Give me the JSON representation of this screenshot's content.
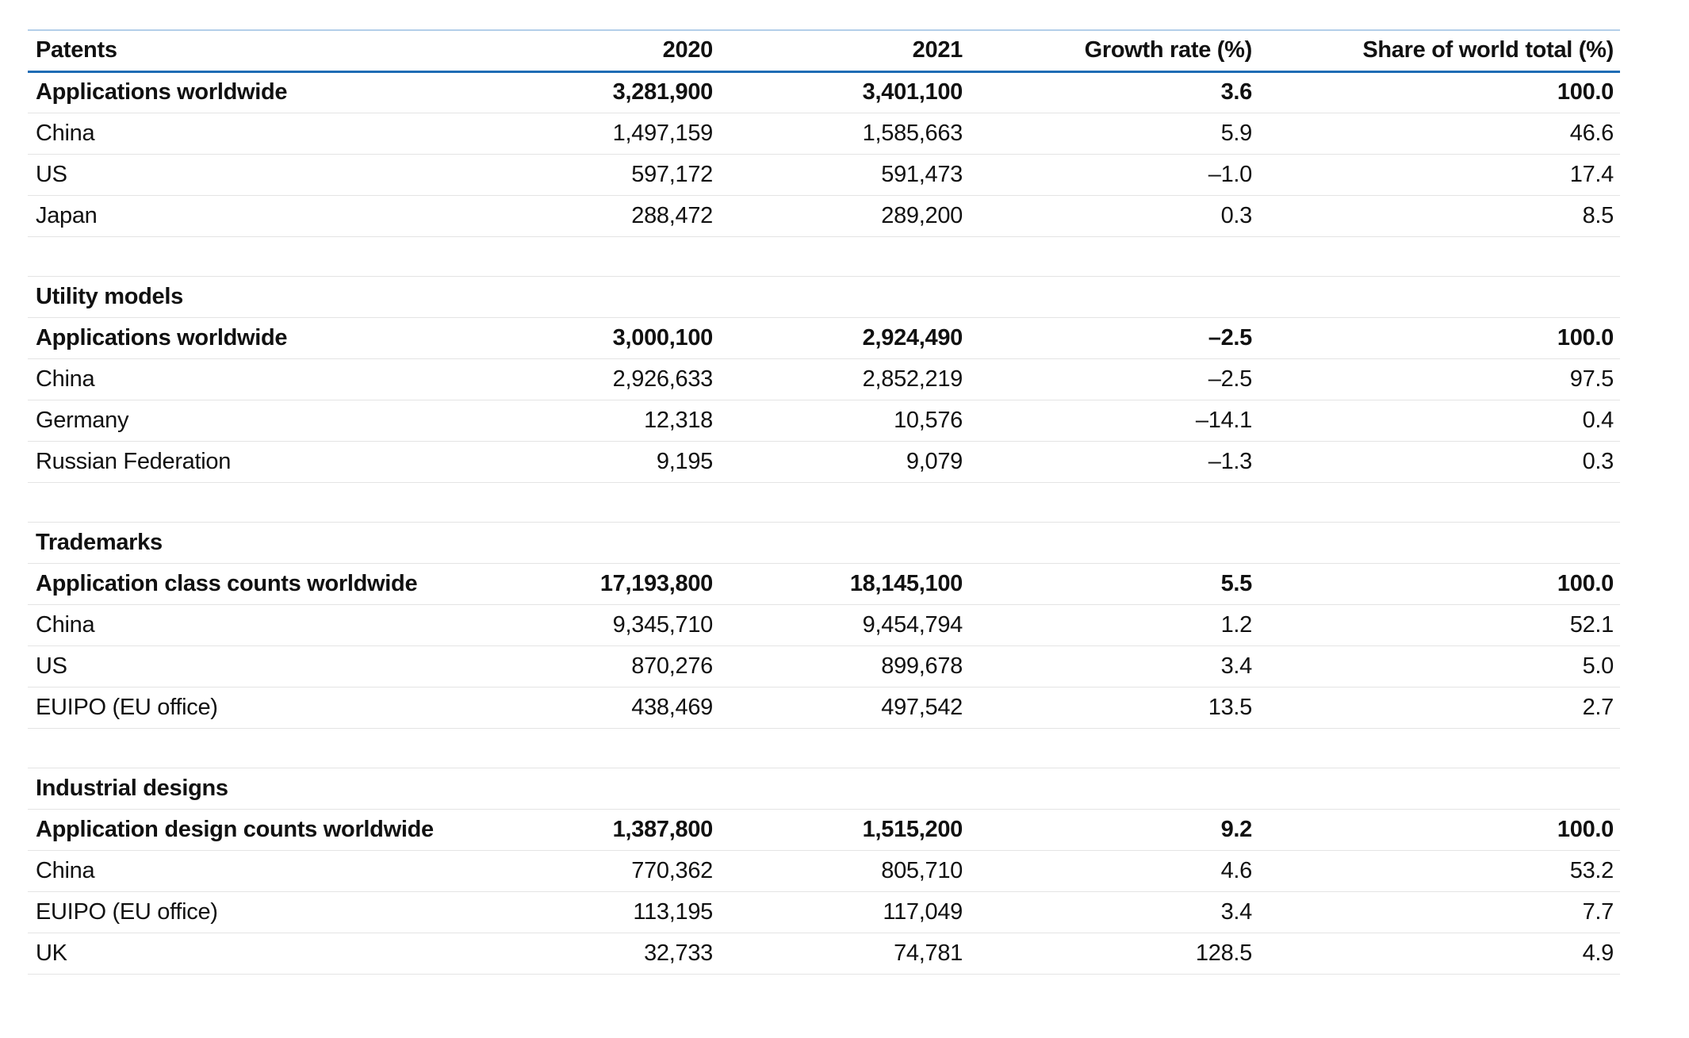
{
  "colors": {
    "text": "#111111",
    "header_rule": "#1f6cb5",
    "top_rule": "#b3cfe9",
    "row_rule": "#e4e4e4"
  },
  "header": {
    "col_patents": "Patents",
    "col_2020": "2020",
    "col_2021": "2021",
    "col_growth": "Growth rate (%)",
    "col_share": "Share of world total (%)"
  },
  "sections": [
    {
      "title": "Patents",
      "rows": [
        {
          "label": "Applications worldwide",
          "y2020": "3,281,900",
          "y2021": "3,401,100",
          "growth": "3.6",
          "share": "100.0"
        },
        {
          "label": "China",
          "y2020": "1,497,159",
          "y2021": "1,585,663",
          "growth": "5.9",
          "share": "46.6"
        },
        {
          "label": "US",
          "y2020": "597,172",
          "y2021": "591,473",
          "growth": "–1.0",
          "share": "17.4"
        },
        {
          "label": "Japan",
          "y2020": "288,472",
          "y2021": "289,200",
          "growth": "0.3",
          "share": "8.5"
        }
      ]
    },
    {
      "title": "Utility models",
      "rows": [
        {
          "label": "Applications worldwide",
          "y2020": "3,000,100",
          "y2021": "2,924,490",
          "growth": "–2.5",
          "share": "100.0"
        },
        {
          "label": "China",
          "y2020": "2,926,633",
          "y2021": "2,852,219",
          "growth": "–2.5",
          "share": "97.5"
        },
        {
          "label": "Germany",
          "y2020": "12,318",
          "y2021": "10,576",
          "growth": "–14.1",
          "share": "0.4"
        },
        {
          "label": "Russian Federation",
          "y2020": "9,195",
          "y2021": "9,079",
          "growth": "–1.3",
          "share": "0.3"
        }
      ]
    },
    {
      "title": "Trademarks",
      "rows": [
        {
          "label": "Application class counts worldwide",
          "y2020": "17,193,800",
          "y2021": "18,145,100",
          "growth": "5.5",
          "share": "100.0"
        },
        {
          "label": "China",
          "y2020": "9,345,710",
          "y2021": "9,454,794",
          "growth": "1.2",
          "share": "52.1"
        },
        {
          "label": "US",
          "y2020": "870,276",
          "y2021": "899,678",
          "growth": "3.4",
          "share": "5.0"
        },
        {
          "label": "EUIPO (EU office)",
          "y2020": "438,469",
          "y2021": "497,542",
          "growth": "13.5",
          "share": "2.7"
        }
      ]
    },
    {
      "title": "Industrial designs",
      "rows": [
        {
          "label": "Application design counts worldwide",
          "y2020": "1,387,800",
          "y2021": "1,515,200",
          "growth": "9.2",
          "share": "100.0"
        },
        {
          "label": "China",
          "y2020": "770,362",
          "y2021": "805,710",
          "growth": "4.6",
          "share": "53.2"
        },
        {
          "label": "EUIPO (EU office)",
          "y2020": "113,195",
          "y2021": "117,049",
          "growth": "3.4",
          "share": "7.7"
        },
        {
          "label": "UK",
          "y2020": "32,733",
          "y2021": "74,781",
          "growth": "128.5",
          "share": "4.9"
        }
      ]
    }
  ],
  "chart_data": {
    "type": "table",
    "columns": [
      "Patents",
      "2020",
      "2021",
      "Growth rate (%)",
      "Share of world total (%)"
    ],
    "sections": [
      {
        "title": "Patents",
        "rows": [
          [
            "Applications worldwide",
            3281900,
            3401100,
            3.6,
            100.0
          ],
          [
            "China",
            1497159,
            1585663,
            5.9,
            46.6
          ],
          [
            "US",
            597172,
            591473,
            -1.0,
            17.4
          ],
          [
            "Japan",
            288472,
            289200,
            0.3,
            8.5
          ]
        ]
      },
      {
        "title": "Utility models",
        "rows": [
          [
            "Applications worldwide",
            3000100,
            2924490,
            -2.5,
            100.0
          ],
          [
            "China",
            2926633,
            2852219,
            -2.5,
            97.5
          ],
          [
            "Germany",
            12318,
            10576,
            -14.1,
            0.4
          ],
          [
            "Russian Federation",
            9195,
            9079,
            -1.3,
            0.3
          ]
        ]
      },
      {
        "title": "Trademarks",
        "rows": [
          [
            "Application class counts worldwide",
            17193800,
            18145100,
            5.5,
            100.0
          ],
          [
            "China",
            9345710,
            9454794,
            1.2,
            52.1
          ],
          [
            "US",
            870276,
            899678,
            3.4,
            5.0
          ],
          [
            "EUIPO (EU office)",
            438469,
            497542,
            13.5,
            2.7
          ]
        ]
      },
      {
        "title": "Industrial designs",
        "rows": [
          [
            "Application design counts worldwide",
            1387800,
            1515200,
            9.2,
            100.0
          ],
          [
            "China",
            770362,
            805710,
            4.6,
            53.2
          ],
          [
            "EUIPO (EU office)",
            113195,
            117049,
            3.4,
            7.7
          ],
          [
            "UK",
            32733,
            74781,
            128.5,
            4.9
          ]
        ]
      }
    ]
  }
}
